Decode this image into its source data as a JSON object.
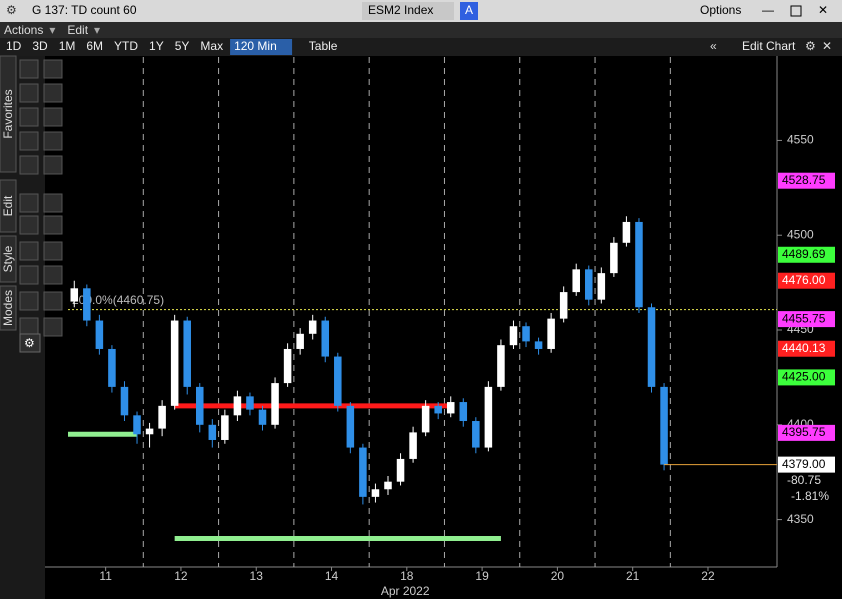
{
  "window": {
    "title": "G 137: TD count 60",
    "security": "ESM2 Index",
    "security_button": "A",
    "options": "Options"
  },
  "menu": [
    "Actions",
    "Edit"
  ],
  "toolbar": {
    "ranges": [
      "1D",
      "3D",
      "1M",
      "6M",
      "YTD",
      "1Y",
      "5Y",
      "Max"
    ],
    "period": "120 Min",
    "table": "Table",
    "edit_chart": "Edit Chart"
  },
  "side_tabs": [
    "Favorites",
    "Edit",
    "Style",
    "Modes"
  ],
  "chart_data": {
    "type": "candlestick",
    "x_title": "Apr 2022",
    "up_color": "#ffffff",
    "down_color": "#2f8fe8",
    "candles": [
      [
        4465,
        4476,
        4462,
        4472
      ],
      [
        4472,
        4474,
        4452,
        4455
      ],
      [
        4455,
        4458,
        4437,
        4440
      ],
      [
        4440,
        4442,
        4417,
        4420
      ],
      [
        4420,
        4423,
        4402,
        4405
      ],
      [
        4405,
        4407,
        4390,
        4395
      ],
      [
        4395,
        4401,
        4388,
        4398
      ],
      [
        4398,
        4413,
        4394,
        4410
      ],
      [
        4410,
        4458,
        4408,
        4455
      ],
      [
        4455,
        4457,
        4416,
        4420
      ],
      [
        4420,
        4422,
        4396,
        4400
      ],
      [
        4400,
        4403,
        4388,
        4392
      ],
      [
        4392,
        4408,
        4390,
        4405
      ],
      [
        4405,
        4418,
        4402,
        4415
      ],
      [
        4415,
        4417,
        4405,
        4408
      ],
      [
        4408,
        4410,
        4397,
        4400
      ],
      [
        4400,
        4425,
        4398,
        4422
      ],
      [
        4422,
        4443,
        4420,
        4440
      ],
      [
        4440,
        4451,
        4437,
        4448
      ],
      [
        4448,
        4458,
        4445,
        4455
      ],
      [
        4455,
        4457,
        4433,
        4436
      ],
      [
        4436,
        4438,
        4407,
        4410
      ],
      [
        4410,
        4412,
        4385,
        4388
      ],
      [
        4388,
        4390,
        4358,
        4362
      ],
      [
        4362,
        4369,
        4359,
        4366
      ],
      [
        4366,
        4373,
        4363,
        4370
      ],
      [
        4370,
        4385,
        4368,
        4382
      ],
      [
        4382,
        4399,
        4380,
        4396
      ],
      [
        4396,
        4413,
        4394,
        4410
      ],
      [
        4410,
        4412,
        4403,
        4406
      ],
      [
        4406,
        4415,
        4404,
        4412
      ],
      [
        4412,
        4414,
        4399,
        4402
      ],
      [
        4402,
        4404,
        4385,
        4388
      ],
      [
        4388,
        4423,
        4386,
        4420
      ],
      [
        4420,
        4445,
        4418,
        4442
      ],
      [
        4442,
        4455,
        4440,
        4452
      ],
      [
        4452,
        4454,
        4441,
        4444
      ],
      [
        4444,
        4446,
        4437,
        4440
      ],
      [
        4440,
        4459,
        4438,
        4456
      ],
      [
        4456,
        4473,
        4454,
        4470
      ],
      [
        4470,
        4485,
        4468,
        4482
      ],
      [
        4482,
        4484,
        4463,
        4466
      ],
      [
        4466,
        4483,
        4464,
        4480
      ],
      [
        4480,
        4499,
        4478,
        4496
      ],
      [
        4496,
        4510,
        4494,
        4507
      ],
      [
        4507,
        4509,
        4459,
        4462
      ],
      [
        4462,
        4464,
        4417,
        4420
      ],
      [
        4420,
        4422,
        4376,
        4379
      ]
    ],
    "xlim": [
      -0.5,
      56
    ],
    "xticks": [
      {
        "value": 2.5,
        "label": "11"
      },
      {
        "value": 8.5,
        "label": "12"
      },
      {
        "value": 14.5,
        "label": "13"
      },
      {
        "value": 20.5,
        "label": "14"
      },
      {
        "value": 26.5,
        "label": "18"
      },
      {
        "value": 32.5,
        "label": "19"
      },
      {
        "value": 38.5,
        "label": "20"
      },
      {
        "value": 44.5,
        "label": "21"
      },
      {
        "value": 50.5,
        "label": "22"
      }
    ],
    "ylim": [
      4325,
      4594
    ],
    "yticks": [
      4350,
      4400,
      4450,
      4500,
      4550
    ],
    "grid": false,
    "fib_line": {
      "value": 4460.75,
      "label": "200.0%(4460.75)",
      "color": "#e8e850"
    },
    "levels": [
      {
        "value": 4410,
        "from": 8,
        "to": 30,
        "color": "#ff1a1a"
      },
      {
        "value": 4395,
        "from": -0.5,
        "to": 5,
        "color": "#90ee90"
      },
      {
        "value": 4340,
        "from": 8,
        "to": 34,
        "color": "#90ee90"
      }
    ],
    "badges": [
      {
        "value": 4528.75,
        "label": "4528.75",
        "color": "#ff3cff",
        "text_color": "#000000"
      },
      {
        "value": 4489.69,
        "label": "4489.69",
        "color": "#3cff3c",
        "text_color": "#000000"
      },
      {
        "value": 4476,
        "label": "4476.00",
        "color": "#ff2020",
        "text_color": "#ffffff"
      },
      {
        "value": 4455.75,
        "label": "4455.75",
        "color": "#ff3cff",
        "text_color": "#000000"
      },
      {
        "value": 4440.13,
        "label": "4440.13",
        "color": "#ff2020",
        "text_color": "#ffffff"
      },
      {
        "value": 4425,
        "label": "4425.00",
        "color": "#3cff3c",
        "text_color": "#000000"
      },
      {
        "value": 4395.75,
        "label": "4395.75",
        "color": "#ff3cff",
        "text_color": "#000000"
      },
      {
        "value": 4379,
        "label": "4379.00",
        "color": "#ffffff",
        "text_color": "#000000"
      }
    ],
    "net_change": "-80.75",
    "pct_change": "-1.81%"
  }
}
